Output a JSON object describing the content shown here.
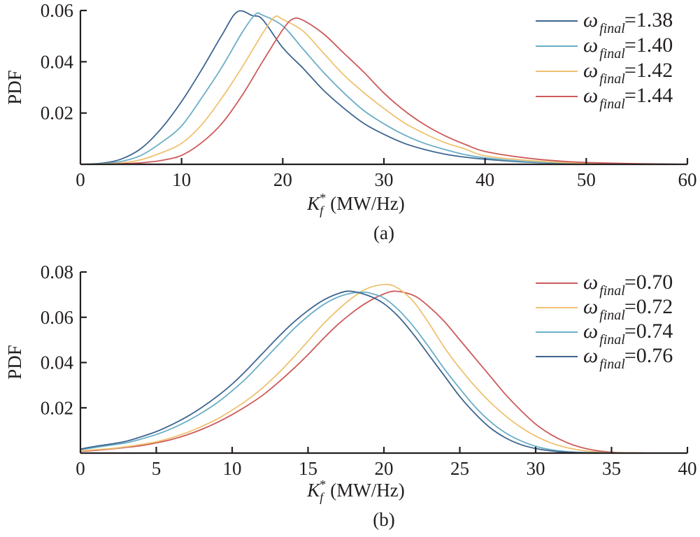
{
  "chart_data": [
    {
      "type": "line",
      "panel_label": "(a)",
      "title": "",
      "xlabel": "K_f^* (MW/Hz)",
      "xlabel_parts": {
        "symbol": "K",
        "subscript": "f",
        "superscript": "*",
        "unit": "(MW/Hz)"
      },
      "ylabel": "PDF",
      "xlim": [
        0,
        60
      ],
      "ylim": [
        0,
        0.06
      ],
      "xticks": [
        0,
        10,
        20,
        30,
        40,
        50,
        60
      ],
      "xtick_labels": [
        "0",
        "10",
        "20",
        "30",
        "40",
        "50",
        "60"
      ],
      "yticks": [
        0.02,
        0.04,
        0.06
      ],
      "ytick_labels": [
        "0.02",
        "0.04",
        "0.06"
      ],
      "grid": false,
      "legend_position": "top-right",
      "series": [
        {
          "name": "ω_final=1.38",
          "legend_prefix": "ω",
          "legend_sub": "final",
          "legend_value": "=1.38",
          "color": "#3d6590",
          "x": [
            0,
            2,
            4,
            6,
            8,
            10,
            12,
            14,
            15.5,
            17,
            18,
            20,
            22,
            24,
            26,
            28,
            30,
            32,
            34,
            36,
            38,
            40,
            44,
            48,
            52,
            56,
            60
          ],
          "y": [
            0,
            0.0004,
            0.002,
            0.0062,
            0.014,
            0.0245,
            0.037,
            0.0505,
            0.0595,
            0.058,
            0.0565,
            0.0455,
            0.0375,
            0.029,
            0.022,
            0.016,
            0.0117,
            0.0082,
            0.0058,
            0.004,
            0.0028,
            0.002,
            0.0009,
            0.0004,
            0.0002,
            0.0001,
            0
          ]
        },
        {
          "name": "ω_final=1.40",
          "legend_prefix": "ω",
          "legend_sub": "final",
          "legend_value": "=1.40",
          "color": "#6aaec6",
          "x": [
            0,
            2,
            4,
            6,
            8,
            10,
            12,
            14,
            16,
            17.3,
            18,
            20,
            22,
            24,
            26,
            28,
            30,
            32,
            34,
            36,
            38,
            40,
            44,
            48,
            52,
            56,
            60
          ],
          "y": [
            0,
            0.0002,
            0.0011,
            0.0035,
            0.0085,
            0.015,
            0.026,
            0.038,
            0.0515,
            0.0585,
            0.0582,
            0.054,
            0.045,
            0.036,
            0.028,
            0.021,
            0.0158,
            0.0115,
            0.0082,
            0.0058,
            0.0038,
            0.0025,
            0.0011,
            0.0005,
            0.0002,
            0.0001,
            0
          ]
        },
        {
          "name": "ω_final=1.42",
          "legend_prefix": "ω",
          "legend_sub": "final",
          "legend_value": "=1.42",
          "color": "#efc16f",
          "x": [
            0,
            2,
            4,
            6,
            8,
            10,
            12,
            14,
            16,
            18,
            19.2,
            20,
            22,
            24,
            26,
            28,
            30,
            32,
            34,
            36,
            38,
            40,
            44,
            48,
            52,
            56,
            60
          ],
          "y": [
            0,
            0.0001,
            0.0005,
            0.0018,
            0.0045,
            0.0082,
            0.0155,
            0.026,
            0.038,
            0.051,
            0.0575,
            0.0565,
            0.052,
            0.0435,
            0.035,
            0.028,
            0.0218,
            0.0162,
            0.012,
            0.0085,
            0.006,
            0.0033,
            0.0016,
            0.0007,
            0.0003,
            0.0001,
            0
          ]
        },
        {
          "name": "ω_final=1.44",
          "legend_prefix": "ω",
          "legend_sub": "final",
          "legend_value": "=1.44",
          "color": "#cd5a5a",
          "x": [
            0,
            2,
            4,
            6,
            8,
            10,
            12,
            14,
            16,
            18,
            20,
            21,
            22,
            24,
            26,
            28,
            30,
            32,
            34,
            36,
            38,
            40,
            44,
            48,
            52,
            56,
            60
          ],
          "y": [
            0,
            0,
            0.0002,
            0.0006,
            0.0015,
            0.0035,
            0.0085,
            0.016,
            0.027,
            0.04,
            0.0525,
            0.0567,
            0.0562,
            0.051,
            0.0435,
            0.036,
            0.0278,
            0.021,
            0.0155,
            0.0112,
            0.0078,
            0.005,
            0.0025,
            0.0011,
            0.0005,
            0.0002,
            0
          ]
        }
      ]
    },
    {
      "type": "line",
      "panel_label": "(b)",
      "title": "",
      "xlabel": "K_f^* (MW/Hz)",
      "xlabel_parts": {
        "symbol": "K",
        "subscript": "f",
        "superscript": "*",
        "unit": "(MW/Hz)"
      },
      "ylabel": "PDF",
      "xlim": [
        0,
        40
      ],
      "ylim": [
        0,
        0.08
      ],
      "xticks": [
        0,
        5,
        10,
        15,
        20,
        25,
        30,
        35,
        40
      ],
      "xtick_labels": [
        "0",
        "5",
        "10",
        "15",
        "20",
        "25",
        "30",
        "35",
        "40"
      ],
      "yticks": [
        0.02,
        0.04,
        0.06,
        0.08
      ],
      "ytick_labels": [
        "0.02",
        "0.04",
        "0.06",
        "0.08"
      ],
      "grid": false,
      "legend_position": "top-right",
      "series": [
        {
          "name": "ω_final=0.70",
          "legend_prefix": "ω",
          "legend_sub": "final",
          "legend_value": "=0.70",
          "color": "#cd5a5a",
          "x": [
            0,
            1,
            2,
            3,
            4,
            5,
            6,
            7,
            8,
            9,
            10,
            11,
            12,
            13,
            14,
            15,
            16,
            17,
            18,
            19,
            20,
            20.8,
            22,
            23,
            24,
            25,
            26,
            27,
            28,
            29,
            30,
            31,
            32,
            33,
            34,
            35,
            36,
            38,
            40
          ],
          "y": [
            0.0008,
            0.0012,
            0.0018,
            0.0025,
            0.0033,
            0.0045,
            0.006,
            0.008,
            0.0105,
            0.0135,
            0.017,
            0.021,
            0.0255,
            0.031,
            0.037,
            0.0435,
            0.0505,
            0.057,
            0.0625,
            0.067,
            0.0703,
            0.0715,
            0.0695,
            0.0645,
            0.058,
            0.05,
            0.042,
            0.034,
            0.026,
            0.019,
            0.0128,
            0.0082,
            0.0048,
            0.0025,
            0.0011,
            0.0004,
            0.0001,
            0,
            0
          ]
        },
        {
          "name": "ω_final=0.72",
          "legend_prefix": "ω",
          "legend_sub": "final",
          "legend_value": "=0.72",
          "color": "#efc16f",
          "x": [
            0,
            1,
            2,
            3,
            4,
            5,
            6,
            7,
            8,
            9,
            10,
            11,
            12,
            13,
            14,
            15,
            16,
            17,
            18,
            19,
            20.2,
            21,
            22,
            23,
            24,
            25,
            26,
            27,
            28,
            29,
            30,
            31,
            32,
            33,
            34,
            35,
            36,
            38,
            40
          ],
          "y": [
            0.001,
            0.0015,
            0.002,
            0.0028,
            0.0038,
            0.005,
            0.0068,
            0.009,
            0.0118,
            0.015,
            0.019,
            0.0235,
            0.0288,
            0.035,
            0.042,
            0.0495,
            0.057,
            0.0635,
            0.069,
            0.073,
            0.0745,
            0.0725,
            0.0665,
            0.057,
            0.0465,
            0.0375,
            0.0295,
            0.0225,
            0.0165,
            0.0115,
            0.0075,
            0.0045,
            0.0025,
            0.0012,
            0.0005,
            0.0002,
            0.0001,
            0,
            0
          ]
        },
        {
          "name": "ω_final=0.74",
          "legend_prefix": "ω",
          "legend_sub": "final",
          "legend_value": "=0.74",
          "color": "#6aaec6",
          "x": [
            0,
            1,
            2,
            3,
            4,
            5,
            6,
            7,
            8,
            9,
            10,
            11,
            12,
            13,
            14,
            15,
            16,
            17,
            18,
            18.7,
            19,
            20,
            21,
            22,
            23,
            24,
            25,
            26,
            27,
            28,
            29,
            30,
            31,
            32,
            33,
            34,
            36,
            38,
            40
          ],
          "y": [
            0.0015,
            0.0025,
            0.0035,
            0.0045,
            0.0062,
            0.0082,
            0.0108,
            0.014,
            0.0178,
            0.0222,
            0.0275,
            0.0335,
            0.0405,
            0.0475,
            0.0545,
            0.0605,
            0.0655,
            0.069,
            0.0708,
            0.071,
            0.0708,
            0.0685,
            0.063,
            0.0555,
            0.0465,
            0.037,
            0.0285,
            0.0205,
            0.014,
            0.009,
            0.0055,
            0.003,
            0.0015,
            0.0007,
            0.0003,
            0.0001,
            0,
            0,
            0
          ]
        },
        {
          "name": "ω_final=0.76",
          "legend_prefix": "ω",
          "legend_sub": "final",
          "legend_value": "=0.76",
          "color": "#3d6590",
          "x": [
            0,
            1,
            2,
            3,
            4,
            5,
            6,
            7,
            8,
            9,
            10,
            11,
            12,
            13,
            14,
            15,
            16,
            17,
            17.8,
            19,
            20,
            21,
            22,
            23,
            24,
            25,
            26,
            27,
            28,
            29,
            30,
            31,
            32,
            33,
            34,
            36,
            38,
            40
          ],
          "y": [
            0.0018,
            0.003,
            0.004,
            0.0052,
            0.0072,
            0.0095,
            0.0125,
            0.016,
            0.0202,
            0.025,
            0.0305,
            0.037,
            0.044,
            0.051,
            0.0575,
            0.063,
            0.0675,
            0.0705,
            0.0715,
            0.0695,
            0.066,
            0.06,
            0.052,
            0.043,
            0.034,
            0.025,
            0.0175,
            0.0112,
            0.0068,
            0.0038,
            0.002,
            0.001,
            0.0004,
            0.0002,
            0.0001,
            0,
            0,
            0
          ]
        }
      ]
    }
  ]
}
